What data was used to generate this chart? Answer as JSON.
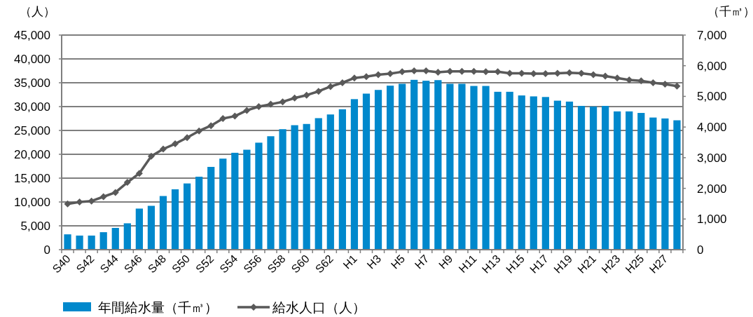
{
  "chart_data": {
    "type": "bar",
    "ylabel": "（人）",
    "y2label": "（千㎥）",
    "categories": [
      "S40",
      null,
      "S42",
      null,
      "S44",
      null,
      "S46",
      null,
      "S48",
      null,
      "S50",
      null,
      "S52",
      null,
      "S54",
      null,
      "S56",
      null,
      "S58",
      null,
      "S60",
      null,
      "S62",
      null,
      "H1",
      null,
      "H3",
      null,
      "H5",
      null,
      "H7",
      null,
      "H9",
      null,
      "H11",
      null,
      "H13",
      null,
      "H15",
      null,
      "H17",
      null,
      "H19",
      null,
      "H21",
      null,
      "H23",
      null,
      "H25",
      null,
      "H27",
      null
    ],
    "series": [
      {
        "name": "年間給水量（千㎥）",
        "axis": "y2",
        "color": "#0088cc",
        "values": [
          500,
          460,
          460,
          570,
          710,
          860,
          1340,
          1430,
          1750,
          1970,
          2160,
          2380,
          2700,
          2970,
          3160,
          3260,
          3490,
          3700,
          3930,
          4060,
          4100,
          4290,
          4410,
          4580,
          4910,
          5090,
          5210,
          5350,
          5410,
          5540,
          5510,
          5530,
          5410,
          5410,
          5340,
          5340,
          5150,
          5150,
          5030,
          5000,
          4980,
          4860,
          4830,
          4690,
          4670,
          4690,
          4510,
          4510,
          4460,
          4310,
          4280,
          4220
        ]
      },
      {
        "name": "給水人口（人）",
        "type": "line",
        "axis": "y",
        "color": "#595959",
        "marker": "diamond",
        "values": [
          9600,
          10000,
          10200,
          11100,
          12000,
          14100,
          16000,
          19600,
          21100,
          22200,
          23500,
          24900,
          26000,
          27500,
          28000,
          29200,
          30000,
          30500,
          31000,
          31800,
          32400,
          33200,
          34200,
          35000,
          36000,
          36300,
          36700,
          36900,
          37300,
          37500,
          37500,
          37200,
          37400,
          37400,
          37400,
          37300,
          37300,
          37000,
          37000,
          36900,
          36900,
          37000,
          37100,
          37000,
          36700,
          36400,
          36000,
          35600,
          35400,
          35000,
          34700,
          34300
        ]
      }
    ],
    "ylim": [
      0,
      45000
    ],
    "yticks": [
      0,
      {
        "value": 5000,
        "label": "5,000"
      },
      {
        "value": 10000,
        "label": "10,000"
      },
      {
        "value": 15000,
        "label": "15,000"
      },
      {
        "value": 20000,
        "label": "20,000"
      },
      {
        "value": 25000,
        "label": "25,000"
      },
      {
        "value": 30000,
        "label": "30,000"
      },
      {
        "value": 35000,
        "label": "35,000"
      },
      {
        "value": 40000,
        "label": "40,000"
      },
      {
        "value": 45000,
        "label": "45,000"
      }
    ],
    "y2lim": [
      0,
      7000
    ],
    "y2ticks": [
      0,
      {
        "value": 1000,
        "label": "1,000"
      },
      {
        "value": 2000,
        "label": "2,000"
      },
      {
        "value": 3000,
        "label": "3,000"
      },
      {
        "value": 4000,
        "label": "4,000"
      },
      {
        "value": 5000,
        "label": "5,000"
      },
      {
        "value": 6000,
        "label": "6,000"
      },
      {
        "value": 7000,
        "label": "7,000"
      }
    ],
    "grid": "y",
    "legend": "bottom"
  }
}
